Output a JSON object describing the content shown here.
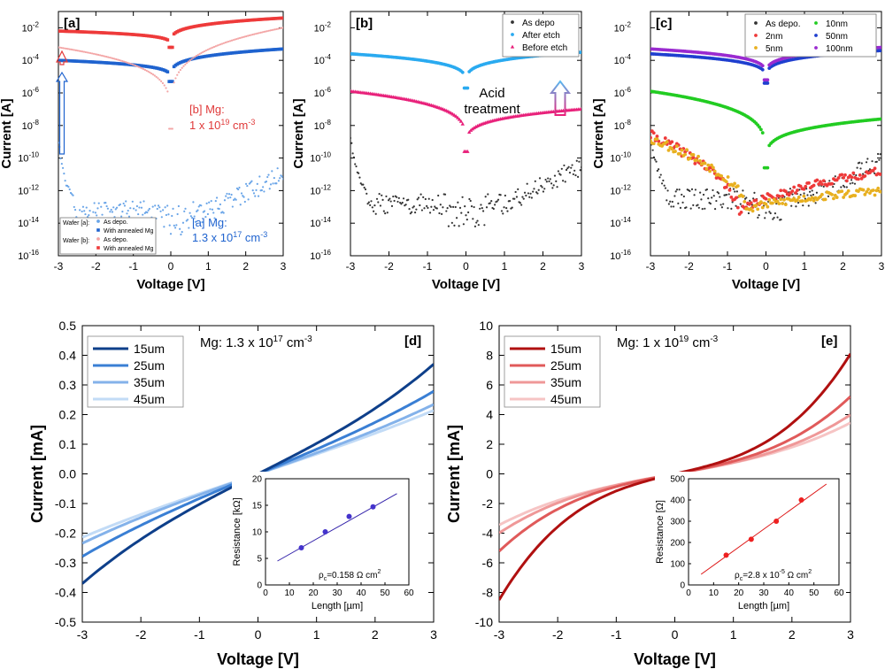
{
  "chart_data": [
    {
      "id": "a",
      "type": "scatter",
      "panel_label": "[a]",
      "yscale": "log",
      "xlabel": "Voltage [V]",
      "ylabel": "Current [A]",
      "xlim": [
        -3,
        3
      ],
      "ylim_exp": [
        -16,
        -1
      ],
      "xticks": [
        "-3",
        "-2",
        "-1",
        "0",
        "1",
        "2",
        "3"
      ],
      "yticks": [
        {
          "exp": -2,
          "base": "10",
          "sup": "-2"
        },
        {
          "exp": -4,
          "base": "10",
          "sup": "-4"
        },
        {
          "exp": -6,
          "base": "10",
          "sup": "-6"
        },
        {
          "exp": -8,
          "base": "10",
          "sup": "-8"
        },
        {
          "exp": -10,
          "base": "10",
          "sup": "-10"
        },
        {
          "exp": -12,
          "base": "10",
          "sup": "-12"
        },
        {
          "exp": -14,
          "base": "10",
          "sup": "-14"
        },
        {
          "exp": -16,
          "base": "10",
          "sup": "-16"
        }
      ],
      "series": [
        {
          "name": "As depo.",
          "group": "Wafer [a]:",
          "color": "#6aa5e8",
          "marker": "dot",
          "curve": "noise",
          "floor": -13.3,
          "edge": -9.8,
          "seed": 11
        },
        {
          "name": "With annealed Mg",
          "group": "Wafer [a]:",
          "color": "#1f63cf",
          "marker": "square",
          "curve": "vshape",
          "left": -4.0,
          "right": -3.3,
          "min": -5.3
        },
        {
          "name": "As depo.",
          "group": "Wafer [b]:",
          "color": "#f3a6a6",
          "marker": "dot",
          "curve": "vshape",
          "left": -3.2,
          "right": -2.0,
          "min": -8.2,
          "k": 0.8
        },
        {
          "name": "With annealed Mg",
          "group": "Wafer [b]:",
          "color": "#ee3a3a",
          "marker": "square",
          "curve": "vshape",
          "left": -2.2,
          "right": -1.4,
          "min": -3.2
        }
      ],
      "annotations": [
        {
          "lines": [
            "[b] Mg:",
            "1 x 10",
            "19",
            " cm",
            "-3"
          ],
          "color": "#e03a3a"
        },
        {
          "lines": [
            "[a] Mg:",
            "1.3 x 10",
            "17",
            " cm",
            "-3"
          ],
          "color": "#1f63cf"
        }
      ]
    },
    {
      "id": "b",
      "type": "scatter",
      "panel_label": "[b]",
      "yscale": "log",
      "xlabel": "Voltage [V]",
      "ylabel": "Current [A]",
      "xlim": [
        -3,
        3
      ],
      "ylim_exp": [
        -16,
        -1
      ],
      "xticks": [
        "-3",
        "-2",
        "-1",
        "0",
        "1",
        "2",
        "3"
      ],
      "yticks": [
        {
          "exp": -2,
          "base": "10",
          "sup": "-2"
        },
        {
          "exp": -4,
          "base": "10",
          "sup": "-4"
        },
        {
          "exp": -6,
          "base": "10",
          "sup": "-6"
        },
        {
          "exp": -8,
          "base": "10",
          "sup": "-8"
        },
        {
          "exp": -10,
          "base": "10",
          "sup": "-10"
        },
        {
          "exp": -12,
          "base": "10",
          "sup": "-12"
        },
        {
          "exp": -14,
          "base": "10",
          "sup": "-14"
        },
        {
          "exp": -16,
          "base": "10",
          "sup": "-16"
        }
      ],
      "series": [
        {
          "name": "As depo",
          "color": "#333333",
          "marker": "dot",
          "curve": "noise",
          "floor": -12.8,
          "edge": -9.6,
          "seed": 23
        },
        {
          "name": "After etch",
          "color": "#2aaaf0",
          "marker": "circle",
          "curve": "vshape",
          "left": -3.6,
          "right": -3.5,
          "min": -5.7
        },
        {
          "name": "Before etch",
          "color": "#e8207a",
          "marker": "triangle",
          "curve": "vshape",
          "left": -5.9,
          "right": -7.0,
          "min": -9.6
        }
      ],
      "annotations": [
        {
          "lines": [
            "Acid",
            "treatment"
          ],
          "color": "#111111"
        }
      ]
    },
    {
      "id": "c",
      "type": "scatter",
      "panel_label": "[c]",
      "yscale": "log",
      "xlabel": "Voltage [V]",
      "ylabel": "Current [A]",
      "xlim": [
        -3,
        3
      ],
      "ylim_exp": [
        -16,
        -1
      ],
      "xticks": [
        "-3",
        "-2",
        "-1",
        "0",
        "1",
        "2",
        "3"
      ],
      "yticks": [
        {
          "exp": -2,
          "base": "10",
          "sup": "-2"
        },
        {
          "exp": -4,
          "base": "10",
          "sup": "-4"
        },
        {
          "exp": -6,
          "base": "10",
          "sup": "-6"
        },
        {
          "exp": -8,
          "base": "10",
          "sup": "-8"
        },
        {
          "exp": -10,
          "base": "10",
          "sup": "-10"
        },
        {
          "exp": -12,
          "base": "10",
          "sup": "-12"
        },
        {
          "exp": -14,
          "base": "10",
          "sup": "-14"
        },
        {
          "exp": -16,
          "base": "10",
          "sup": "-16"
        }
      ],
      "series": [
        {
          "name": "As depo.",
          "color": "#333333",
          "marker": "dot",
          "curve": "noise",
          "floor": -12.5,
          "edge": -9.5,
          "seed": 37
        },
        {
          "name": "2nm",
          "color": "#ee3a3a",
          "marker": "circle",
          "curve": "asym",
          "left": -8.6,
          "right": -10.8,
          "min": -13.6,
          "xmin": -0.7,
          "seed": 41
        },
        {
          "name": "5nm",
          "color": "#e8b020",
          "marker": "circle",
          "curve": "asym",
          "left": -8.8,
          "right": -12.0,
          "min": -13.3,
          "xmin": -0.5,
          "seed": 53
        },
        {
          "name": "10nm",
          "color": "#22cc22",
          "marker": "circle",
          "curve": "vshape",
          "left": -5.9,
          "right": -7.6,
          "min": -10.6
        },
        {
          "name": "50nm",
          "color": "#1f3fcf",
          "marker": "circle",
          "curve": "vshape",
          "left": -3.6,
          "right": -3.4,
          "min": -5.4
        },
        {
          "name": "100nm",
          "color": "#9a2ad0",
          "marker": "circle",
          "curve": "vshape",
          "left": -3.3,
          "right": -3.2,
          "min": -5.2
        }
      ]
    },
    {
      "id": "d",
      "type": "line",
      "panel_label": "[d]",
      "xlabel": "Voltage [V]",
      "ylabel": "Current [mA]",
      "xlim": [
        -3,
        3
      ],
      "ylim": [
        -0.5,
        0.5
      ],
      "xticks": [
        "-3",
        "-2",
        "-1",
        "0",
        "1",
        "2",
        "3"
      ],
      "yticks": [
        "0.5",
        "0.4",
        "0.3",
        "0.2",
        "0.1",
        "0.0",
        "-0.1",
        "-0.2",
        "-0.3",
        "-0.4",
        "-0.5"
      ],
      "title": {
        "prefix": "Mg: 1.3 x 10",
        "sup": "17",
        "mid": " cm",
        "sup2": "-3"
      },
      "series": [
        {
          "name": "15um",
          "color": "#0e3f8a",
          "a": 0.1,
          "b": 0.0026,
          "s": 1
        },
        {
          "name": "25um",
          "color": "#3a7fd4",
          "a": 0.082,
          "b": 0.0012,
          "s": 1
        },
        {
          "name": "35um",
          "color": "#84b2ea",
          "a": 0.07,
          "b": 0.0009,
          "s": 1
        },
        {
          "name": "45um",
          "color": "#c2dbf6",
          "a": 0.066,
          "b": 0.0006,
          "s": 1
        }
      ],
      "inset": {
        "xlabel": "Length [µm]",
        "ylabel": "Resistance [kΩ]",
        "xlim": [
          0,
          60
        ],
        "ylim": [
          0,
          20
        ],
        "xticks": [
          "0",
          "10",
          "20",
          "30",
          "40",
          "50",
          "60"
        ],
        "yticks": [
          "0",
          "5",
          "10",
          "15",
          "20"
        ],
        "points": [
          [
            15,
            7
          ],
          [
            25,
            10
          ],
          [
            35,
            12.9
          ],
          [
            45,
            14.7
          ]
        ],
        "fit": [
          [
            5,
            4.5
          ],
          [
            55,
            17.2
          ]
        ],
        "color": "#4433cc",
        "line_color": "#3322aa",
        "label": {
          "pre": "ρ",
          "sub": "c",
          "post": "=0.158 Ω cm",
          "sup": "2"
        }
      }
    },
    {
      "id": "e",
      "type": "line",
      "panel_label": "[e]",
      "xlabel": "Voltage [V]",
      "ylabel": "Current [mA]",
      "xlim": [
        -3,
        3
      ],
      "ylim": [
        -10,
        10
      ],
      "xticks": [
        "-3",
        "-2",
        "-1",
        "0",
        "1",
        "2",
        "3"
      ],
      "yticks": [
        "10",
        "8",
        "6",
        "4",
        "2",
        "0",
        "-2",
        "-4",
        "-6",
        "-8",
        "-10"
      ],
      "title": {
        "prefix": "Mg: 1 x 10",
        "sup": "19",
        "mid": " cm",
        "sup2": "-3"
      },
      "series": [
        {
          "name": "15um",
          "color": "#b01010",
          "a": 0.9,
          "b": 0.2,
          "s": 1.05
        },
        {
          "name": "25um",
          "color": "#e05a5a",
          "a": 0.75,
          "b": 0.11,
          "s": 1
        },
        {
          "name": "35um",
          "color": "#ef9898",
          "a": 0.7,
          "b": 0.07,
          "s": 1
        },
        {
          "name": "45um",
          "color": "#f6c4c4",
          "a": 0.7,
          "b": 0.05,
          "s": 1
        }
      ],
      "inset": {
        "xlabel": "Length [µm]",
        "ylabel": "Resistance [Ω]",
        "xlim": [
          0,
          60
        ],
        "ylim": [
          0,
          500
        ],
        "xticks": [
          "0",
          "10",
          "20",
          "30",
          "40",
          "50",
          "60"
        ],
        "yticks": [
          "0",
          "100",
          "200",
          "300",
          "400",
          "500"
        ],
        "points": [
          [
            15,
            140
          ],
          [
            25,
            215
          ],
          [
            35,
            300
          ],
          [
            45,
            400
          ]
        ],
        "fit": [
          [
            5,
            50
          ],
          [
            55,
            475
          ]
        ],
        "color": "#ee2020",
        "line_color": "#dd1515",
        "label": {
          "pre": "ρ",
          "sub": "c",
          "post": "=2.8 x 10",
          "sup": "-5",
          "post2": " Ω cm",
          "sup2": "2"
        }
      }
    }
  ]
}
